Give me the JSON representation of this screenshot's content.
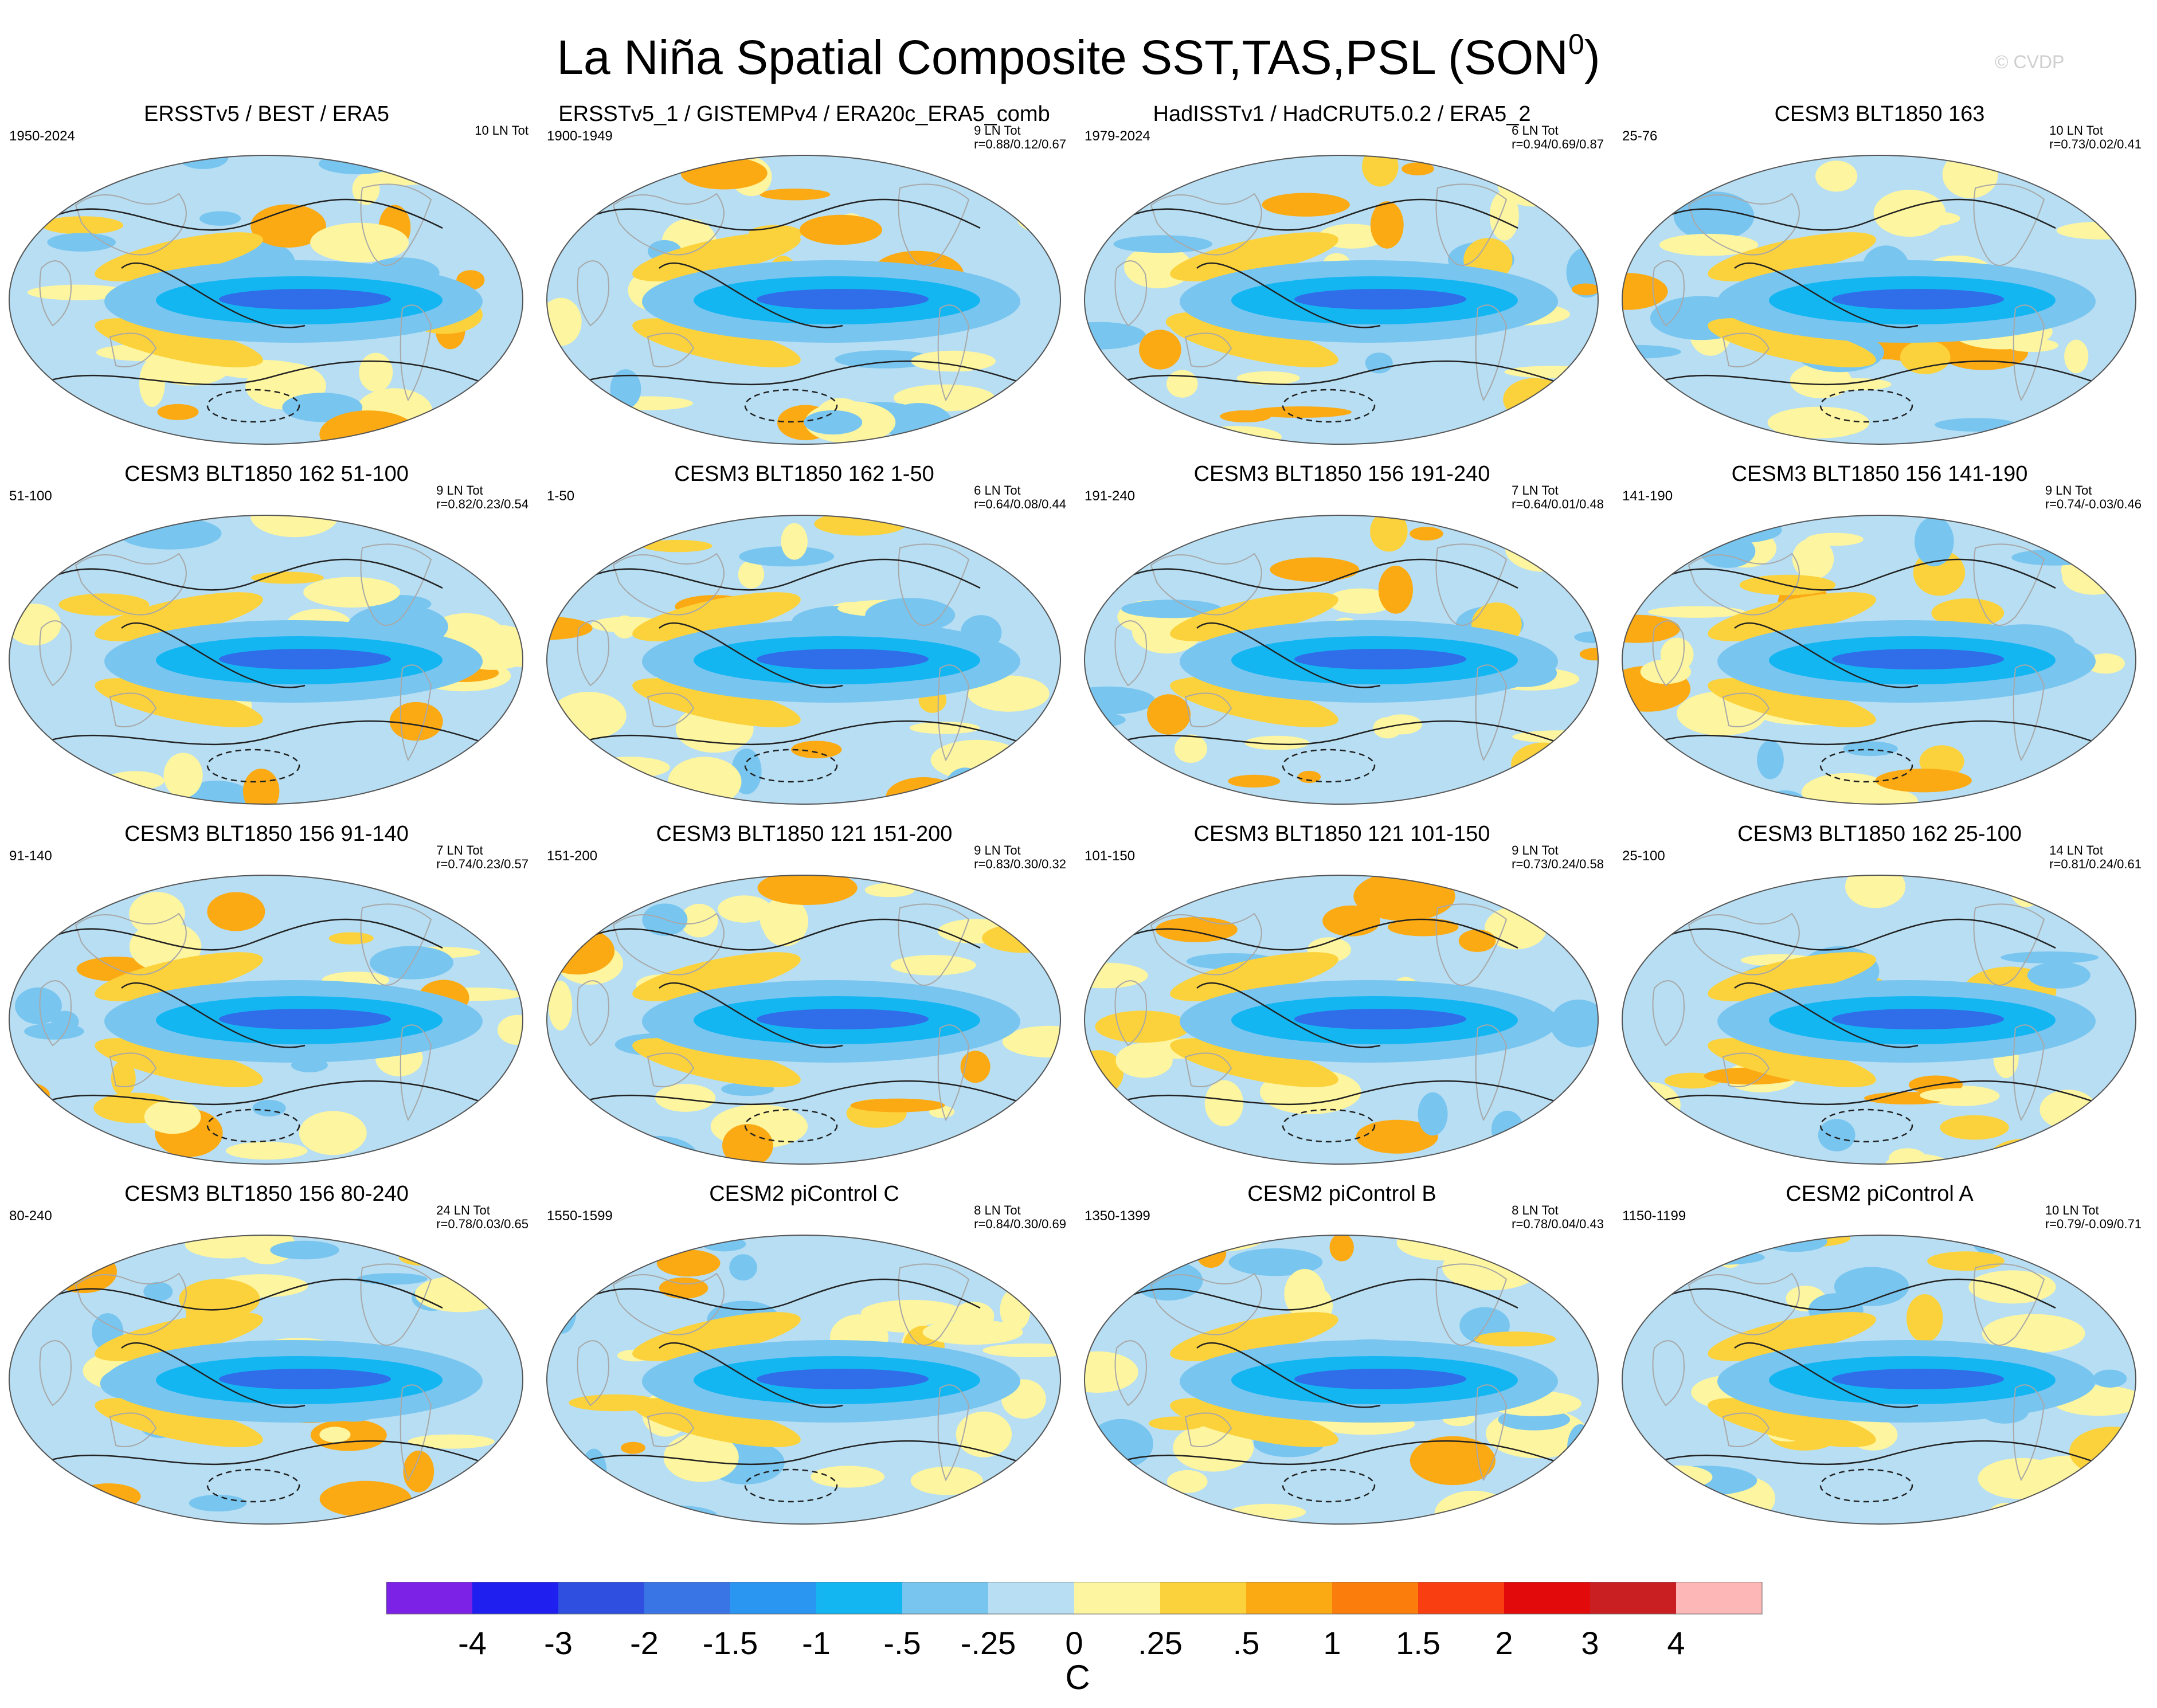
{
  "title": "La Niña Spatial Composite SST,TAS,PSL (SON",
  "title_superscript": "0",
  "title_close": ")",
  "watermark": "© CVDP",
  "panels": [
    {
      "title": "ERSSTv5 / BEST / ERA5",
      "period": "1950-2024",
      "count": "10 LN Tot",
      "stats": ""
    },
    {
      "title": "ERSSTv5_1 / GISTEMPv4 / ERA20c_ERA5_comb",
      "period": "1900-1949",
      "count": "9 LN Tot",
      "stats": "r=0.88/0.12/0.67"
    },
    {
      "title": "HadISSTv1 / HadCRUT5.0.2 / ERA5_2",
      "period": "1979-2024",
      "count": "6 LN Tot",
      "stats": "r=0.94/0.69/0.87"
    },
    {
      "title": "CESM3 BLT1850 163",
      "period": "25-76",
      "count": "10 LN Tot",
      "stats": "r=0.73/0.02/0.41"
    },
    {
      "title": "CESM3 BLT1850 162 51-100",
      "period": "51-100",
      "count": "9 LN Tot",
      "stats": "r=0.82/0.23/0.54"
    },
    {
      "title": "CESM3 BLT1850 162 1-50",
      "period": "1-50",
      "count": "6 LN Tot",
      "stats": "r=0.64/0.08/0.44"
    },
    {
      "title": "CESM3 BLT1850 156 191-240",
      "period": "191-240",
      "count": "7 LN Tot",
      "stats": "r=0.64/0.01/0.48"
    },
    {
      "title": "CESM3 BLT1850 156 141-190",
      "period": "141-190",
      "count": "9 LN Tot",
      "stats": "r=0.74/-0.03/0.46"
    },
    {
      "title": "CESM3 BLT1850 156 91-140",
      "period": "91-140",
      "count": "7 LN Tot",
      "stats": "r=0.74/0.23/0.57"
    },
    {
      "title": "CESM3 BLT1850 121 151-200",
      "period": "151-200",
      "count": "9 LN Tot",
      "stats": "r=0.83/0.30/0.32"
    },
    {
      "title": "CESM3 BLT1850 121 101-150",
      "period": "101-150",
      "count": "9 LN Tot",
      "stats": "r=0.73/0.24/0.58"
    },
    {
      "title": "CESM3 BLT1850 162 25-100",
      "period": "25-100",
      "count": "14 LN Tot",
      "stats": "r=0.81/0.24/0.61"
    },
    {
      "title": "CESM3 BLT1850 156 80-240",
      "period": "80-240",
      "count": "24 LN Tot",
      "stats": "r=0.78/0.03/0.65"
    },
    {
      "title": "CESM2 piControl C",
      "period": "1550-1599",
      "count": "8 LN Tot",
      "stats": "r=0.84/0.30/0.69"
    },
    {
      "title": "CESM2 piControl B",
      "period": "1350-1399",
      "count": "8 LN Tot",
      "stats": "r=0.78/0.04/0.43"
    },
    {
      "title": "CESM2 piControl A",
      "period": "1150-1199",
      "count": "10 LN Tot",
      "stats": "r=0.79/-0.09/0.71"
    }
  ],
  "colorbar": {
    "unit": "C",
    "tick_labels": [
      "-4",
      "-3",
      "-2",
      "-1.5",
      "-1",
      "-.5",
      "-.25",
      "0",
      ".25",
      ".5",
      "1",
      "1.5",
      "2",
      "3",
      "4"
    ],
    "colors": [
      "#7b22e6",
      "#1f1ff0",
      "#2f4fe0",
      "#3a75e6",
      "#2b95f2",
      "#14b6f2",
      "#78c5f0",
      "#b7def3",
      "#fdf5a0",
      "#fcd23c",
      "#fbaa14",
      "#fb7e0c",
      "#f93e12",
      "#e20a0a",
      "#c91e22",
      "#fdb7b7"
    ]
  },
  "map_colors": {
    "ocean_neutral": "#b7def3",
    "cool": "#78c5f0",
    "cooler": "#14b6f2",
    "coldest": "#2f6ee8",
    "warm": "#fdf5a0",
    "warmer": "#fcd23c",
    "hot": "#fbaa14",
    "coastline": "#a8a8a8",
    "psl_contour": "#222222"
  }
}
